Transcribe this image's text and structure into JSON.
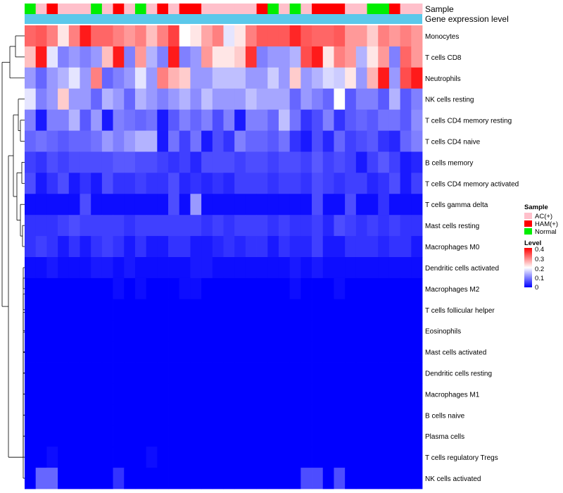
{
  "chart_data": {
    "type": "heatmap",
    "annotation_titles": [
      "Sample",
      "Gene expression level"
    ],
    "rows": [
      "Monocytes",
      "T cells CD8",
      "Neutrophils",
      "NK cells resting",
      "T cells CD4 memory resting",
      "T cells CD4 naive",
      "B cells memory",
      "T cells CD4 memory activated",
      "T cells gamma delta",
      "Mast cells resting",
      "Macrophages M0",
      "Dendritic cells activated",
      "Macrophages M2",
      "T cells follicular helper",
      "Eosinophils",
      "Mast cells activated",
      "Dendritic cells resting",
      "Macrophages M1",
      "B cells naive",
      "Plasma cells",
      "T cells regulatory  Tregs",
      "NK cells activated"
    ],
    "sample_groups": [
      "Normal",
      "AC(+)",
      "HAM(+)",
      "AC(+)",
      "AC(+)",
      "AC(+)",
      "Normal",
      "AC(+)",
      "HAM(+)",
      "AC(+)",
      "Normal",
      "AC(+)",
      "HAM(+)",
      "AC(+)",
      "HAM(+)",
      "HAM(+)",
      "AC(+)",
      "AC(+)",
      "AC(+)",
      "AC(+)",
      "AC(+)",
      "HAM(+)",
      "Normal",
      "AC(+)",
      "Normal",
      "AC(+)",
      "HAM(+)",
      "HAM(+)",
      "HAM(+)",
      "AC(+)",
      "AC(+)",
      "Normal",
      "Normal",
      "HAM(+)",
      "AC(+)",
      "AC(+)"
    ],
    "values": [
      [
        0.32,
        0.33,
        0.3,
        0.22,
        0.3,
        0.38,
        0.32,
        0.32,
        0.3,
        0.28,
        0.3,
        0.25,
        0.3,
        0.35,
        0.2,
        0.22,
        0.27,
        0.3,
        0.18,
        0.22,
        0.3,
        0.33,
        0.33,
        0.33,
        0.37,
        0.33,
        0.32,
        0.32,
        0.33,
        0.28,
        0.28,
        0.24,
        0.3,
        0.28,
        0.3,
        0.28
      ],
      [
        0.25,
        0.38,
        0.18,
        0.1,
        0.12,
        0.1,
        0.12,
        0.25,
        0.38,
        0.1,
        0.28,
        0.14,
        0.1,
        0.38,
        0.1,
        0.12,
        0.28,
        0.22,
        0.22,
        0.24,
        0.36,
        0.1,
        0.12,
        0.12,
        0.14,
        0.34,
        0.38,
        0.22,
        0.3,
        0.28,
        0.14,
        0.22,
        0.28,
        0.1,
        0.32,
        0.28
      ],
      [
        0.12,
        0.08,
        0.12,
        0.14,
        0.18,
        0.12,
        0.3,
        0.08,
        0.1,
        0.12,
        0.18,
        0.12,
        0.3,
        0.26,
        0.24,
        0.12,
        0.12,
        0.15,
        0.15,
        0.15,
        0.12,
        0.12,
        0.16,
        0.12,
        0.24,
        0.12,
        0.14,
        0.17,
        0.16,
        0.22,
        0.12,
        0.26,
        0.38,
        0.12,
        0.34,
        0.38
      ],
      [
        0.18,
        0.1,
        0.12,
        0.24,
        0.12,
        0.12,
        0.08,
        0.14,
        0.12,
        0.08,
        0.14,
        0.12,
        0.1,
        0.12,
        0.14,
        0.11,
        0.15,
        0.12,
        0.12,
        0.12,
        0.15,
        0.13,
        0.13,
        0.13,
        0.08,
        0.12,
        0.1,
        0.08,
        0.2,
        0.07,
        0.1,
        0.1,
        0.07,
        0.14,
        0.07,
        0.1
      ],
      [
        0.1,
        0.02,
        0.1,
        0.1,
        0.14,
        0.07,
        0.12,
        0.02,
        0.1,
        0.09,
        0.08,
        0.09,
        0.02,
        0.07,
        0.1,
        0.08,
        0.1,
        0.06,
        0.1,
        0.02,
        0.1,
        0.1,
        0.08,
        0.15,
        0.09,
        0.04,
        0.06,
        0.1,
        0.04,
        0.07,
        0.08,
        0.07,
        0.09,
        0.09,
        0.07,
        0.11
      ],
      [
        0.08,
        0.09,
        0.08,
        0.07,
        0.08,
        0.08,
        0.09,
        0.12,
        0.1,
        0.12,
        0.14,
        0.14,
        0.02,
        0.09,
        0.05,
        0.09,
        0.02,
        0.06,
        0.04,
        0.1,
        0.08,
        0.08,
        0.07,
        0.09,
        0.04,
        0.02,
        0.06,
        0.03,
        0.08,
        0.05,
        0.06,
        0.07,
        0.04,
        0.03,
        0.08,
        0.1
      ],
      [
        0.05,
        0.04,
        0.06,
        0.05,
        0.06,
        0.06,
        0.06,
        0.06,
        0.07,
        0.07,
        0.06,
        0.06,
        0.05,
        0.04,
        0.05,
        0.03,
        0.06,
        0.06,
        0.06,
        0.05,
        0.06,
        0.06,
        0.05,
        0.06,
        0.06,
        0.05,
        0.07,
        0.05,
        0.06,
        0.05,
        0.02,
        0.05,
        0.07,
        0.05,
        0.02,
        0.03
      ],
      [
        0.06,
        0.02,
        0.04,
        0.06,
        0.02,
        0.04,
        0.02,
        0.06,
        0.04,
        0.04,
        0.05,
        0.04,
        0.04,
        0.06,
        0.03,
        0.04,
        0.03,
        0.04,
        0.03,
        0.05,
        0.05,
        0.05,
        0.04,
        0.05,
        0.05,
        0.04,
        0.06,
        0.05,
        0.04,
        0.05,
        0.05,
        0.03,
        0.04,
        0.06,
        0.02,
        0.05
      ],
      [
        0.01,
        0.01,
        0.01,
        0.01,
        0.01,
        0.06,
        0.01,
        0.01,
        0.01,
        0.01,
        0.01,
        0.01,
        0.01,
        0.06,
        0.01,
        0.12,
        0.01,
        0.01,
        0.01,
        0.01,
        0.01,
        0.01,
        0.01,
        0.01,
        0.01,
        0.01,
        0.06,
        0.01,
        0.01,
        0.06,
        0.01,
        0.01,
        0.04,
        0.01,
        0.01,
        0.01
      ],
      [
        0.04,
        0.04,
        0.04,
        0.05,
        0.06,
        0.05,
        0.05,
        0.05,
        0.05,
        0.04,
        0.05,
        0.05,
        0.05,
        0.05,
        0.05,
        0.05,
        0.04,
        0.05,
        0.04,
        0.05,
        0.05,
        0.05,
        0.04,
        0.05,
        0.04,
        0.04,
        0.05,
        0.03,
        0.06,
        0.05,
        0.04,
        0.05,
        0.04,
        0.05,
        0.04,
        0.04
      ],
      [
        0.04,
        0.05,
        0.04,
        0.02,
        0.04,
        0.02,
        0.04,
        0.05,
        0.04,
        0.02,
        0.04,
        0.02,
        0.02,
        0.04,
        0.04,
        0.02,
        0.02,
        0.03,
        0.04,
        0.03,
        0.04,
        0.04,
        0.02,
        0.04,
        0.03,
        0.03,
        0.05,
        0.02,
        0.02,
        0.04,
        0.04,
        0.04,
        0.03,
        0.04,
        0.04,
        0.02
      ],
      [
        0.01,
        0.01,
        0.02,
        0.01,
        0.01,
        0.01,
        0.02,
        0.02,
        0.01,
        0.02,
        0.01,
        0.01,
        0.01,
        0.01,
        0.01,
        0.02,
        0.02,
        0.01,
        0.01,
        0.01,
        0.01,
        0.01,
        0.01,
        0.01,
        0.02,
        0.01,
        0.02,
        0.01,
        0.01,
        0.01,
        0.01,
        0.01,
        0.01,
        0.01,
        0.01,
        0.01
      ],
      [
        0.0,
        0.0,
        0.0,
        0.0,
        0.0,
        0.0,
        0.0,
        0.0,
        0.01,
        0.0,
        0.01,
        0.0,
        0.0,
        0.0,
        0.01,
        0.01,
        0.0,
        0.0,
        0.0,
        0.0,
        0.0,
        0.0,
        0.0,
        0.0,
        0.01,
        0.0,
        0.0,
        0.0,
        0.01,
        0.0,
        0.0,
        0.0,
        0.0,
        0.0,
        0.0,
        0.0
      ],
      [
        0,
        0,
        0,
        0,
        0,
        0,
        0,
        0,
        0,
        0,
        0,
        0,
        0,
        0,
        0,
        0,
        0,
        0,
        0,
        0,
        0,
        0,
        0,
        0,
        0,
        0,
        0,
        0,
        0,
        0,
        0,
        0,
        0,
        0,
        0,
        0
      ],
      [
        0,
        0,
        0,
        0,
        0,
        0,
        0,
        0,
        0,
        0,
        0,
        0,
        0,
        0,
        0,
        0,
        0,
        0,
        0,
        0,
        0,
        0,
        0,
        0,
        0,
        0,
        0,
        0,
        0,
        0,
        0,
        0,
        0,
        0,
        0,
        0
      ],
      [
        0,
        0,
        0,
        0,
        0,
        0,
        0,
        0,
        0,
        0,
        0,
        0,
        0,
        0,
        0,
        0,
        0,
        0,
        0,
        0,
        0,
        0,
        0,
        0,
        0,
        0,
        0,
        0,
        0,
        0,
        0,
        0,
        0,
        0,
        0,
        0
      ],
      [
        0,
        0,
        0,
        0,
        0,
        0,
        0,
        0,
        0,
        0,
        0,
        0,
        0,
        0,
        0,
        0,
        0,
        0,
        0,
        0,
        0,
        0,
        0,
        0,
        0,
        0,
        0,
        0,
        0,
        0,
        0,
        0,
        0,
        0,
        0,
        0
      ],
      [
        0,
        0,
        0,
        0,
        0,
        0,
        0,
        0,
        0,
        0,
        0,
        0,
        0,
        0,
        0,
        0,
        0,
        0,
        0,
        0,
        0,
        0,
        0,
        0,
        0,
        0,
        0,
        0,
        0,
        0,
        0,
        0,
        0,
        0,
        0,
        0
      ],
      [
        0,
        0,
        0,
        0,
        0,
        0,
        0,
        0,
        0,
        0,
        0,
        0,
        0,
        0,
        0,
        0,
        0,
        0,
        0,
        0,
        0,
        0,
        0,
        0,
        0,
        0,
        0,
        0,
        0,
        0,
        0,
        0,
        0,
        0,
        0,
        0
      ],
      [
        0,
        0,
        0,
        0,
        0,
        0,
        0,
        0,
        0,
        0,
        0,
        0,
        0,
        0,
        0,
        0,
        0,
        0,
        0,
        0,
        0,
        0,
        0,
        0,
        0,
        0,
        0,
        0,
        0,
        0,
        0,
        0,
        0,
        0,
        0,
        0
      ],
      [
        0.0,
        0.0,
        0.01,
        0.0,
        0.0,
        0.0,
        0.0,
        0.0,
        0.0,
        0.0,
        0.0,
        0.01,
        0.0,
        0.0,
        0.0,
        0.0,
        0.0,
        0.0,
        0.0,
        0.0,
        0.0,
        0.0,
        0.0,
        0.0,
        0.0,
        0.0,
        0.0,
        0.0,
        0.0,
        0.0,
        0.0,
        0.0,
        0.0,
        0.0,
        0.0,
        0.0
      ],
      [
        0.0,
        0.08,
        0.08,
        0.0,
        0.0,
        0.0,
        0.0,
        0.0,
        0.04,
        0.0,
        0.0,
        0.0,
        0.0,
        0.0,
        0.0,
        0.0,
        0.0,
        0.0,
        0.0,
        0.0,
        0.0,
        0.0,
        0.0,
        0.0,
        0.0,
        0.06,
        0.06,
        0.0,
        0.06,
        0.0,
        0.0,
        0.0,
        0.0,
        0.0,
        0.0,
        0.0
      ]
    ],
    "legend": {
      "sample": {
        "title": "Sample",
        "entries": [
          {
            "label": "AC(+)",
            "color": "#ffc0cb"
          },
          {
            "label": "HAM(+)",
            "color": "#ff0000"
          },
          {
            "label": "Normal",
            "color": "#00ee00"
          }
        ]
      },
      "level": {
        "title": "Level",
        "ticks": [
          "0.4",
          "0.3",
          "0.2",
          "0.1",
          "0"
        ],
        "min": 0,
        "max": 0.4
      }
    },
    "colors": {
      "low": "#0000ff",
      "mid": "#ffffff",
      "high": "#ff0000",
      "gene_expression_bar": "#5bc8ea"
    }
  }
}
